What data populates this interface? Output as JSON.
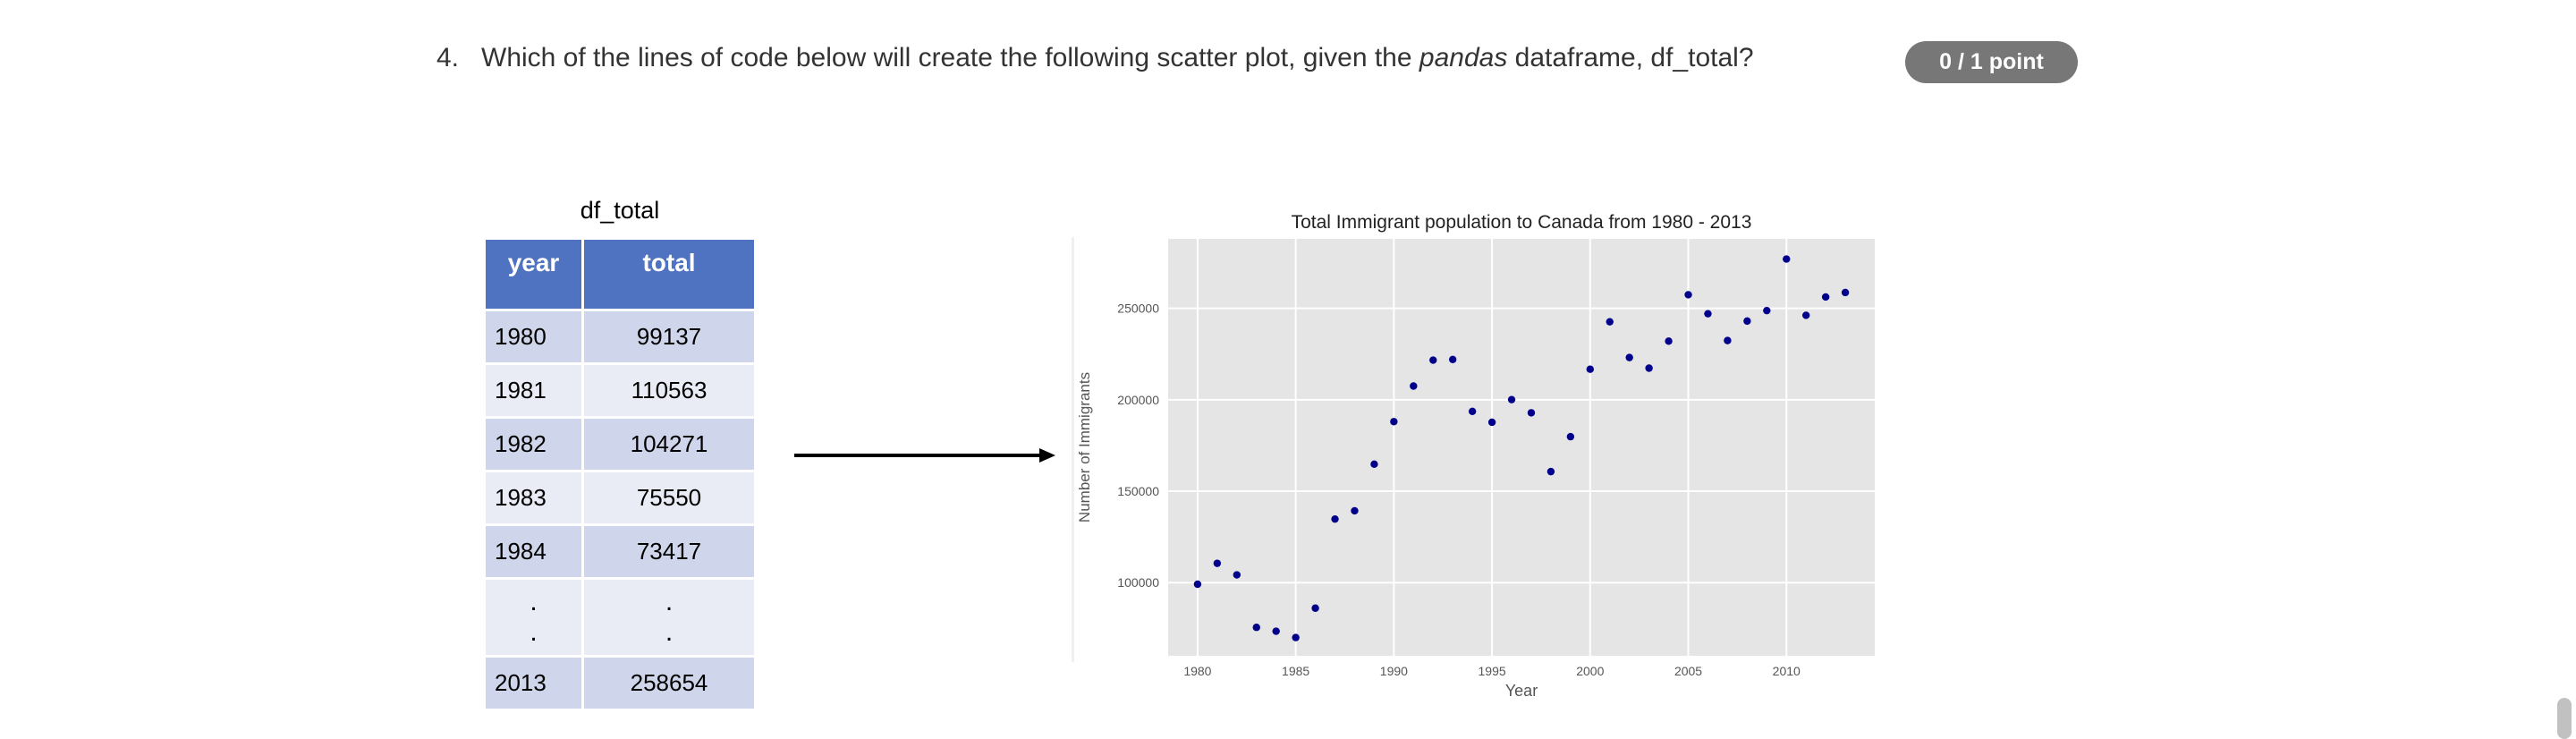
{
  "question": {
    "number": "4.",
    "text_before": "Which of the lines of code below will create the following scatter plot, given the ",
    "text_em": "pandas",
    "text_after": " dataframe, df_total?",
    "score_badge": "0 / 1 point"
  },
  "table": {
    "title": "df_total",
    "headers": [
      "year",
      "total"
    ],
    "rows": [
      [
        "1980",
        "99137"
      ],
      [
        "1981",
        "110563"
      ],
      [
        "1982",
        "104271"
      ],
      [
        "1983",
        "75550"
      ],
      [
        "1984",
        "73417"
      ],
      [
        "2013",
        "258654"
      ]
    ],
    "ellipsis": "."
  },
  "chart_data": {
    "type": "scatter",
    "title": "Total Immigrant population to Canada from 1980 - 2013",
    "xlabel": "Year",
    "ylabel": "Number of Immigrants",
    "xlim": [
      1978.5,
      2014.5
    ],
    "ylim": [
      60000,
      288000
    ],
    "xticks": [
      1980,
      1985,
      1990,
      1995,
      2000,
      2005,
      2010
    ],
    "yticks": [
      100000,
      150000,
      200000,
      250000
    ],
    "grid": true,
    "marker_color": "#00008b",
    "background_color": "#e5e5e5",
    "x": [
      1980,
      1981,
      1982,
      1983,
      1984,
      1985,
      1986,
      1987,
      1988,
      1989,
      1990,
      1991,
      1992,
      1993,
      1994,
      1995,
      1996,
      1997,
      1998,
      1999,
      2000,
      2001,
      2002,
      2003,
      2004,
      2005,
      2006,
      2007,
      2008,
      2009,
      2010,
      2011,
      2012,
      2013
    ],
    "y": [
      99137,
      110563,
      104271,
      75550,
      73417,
      69978,
      86048,
      134771,
      139306,
      164783,
      188054,
      207509,
      221687,
      222049,
      193665,
      187712,
      200085,
      192885,
      160727,
      179818,
      216712,
      242658,
      223111,
      217297,
      232083,
      257457,
      247057,
      232405,
      243047,
      248768,
      276956,
      246194,
      256222,
      258654
    ]
  }
}
